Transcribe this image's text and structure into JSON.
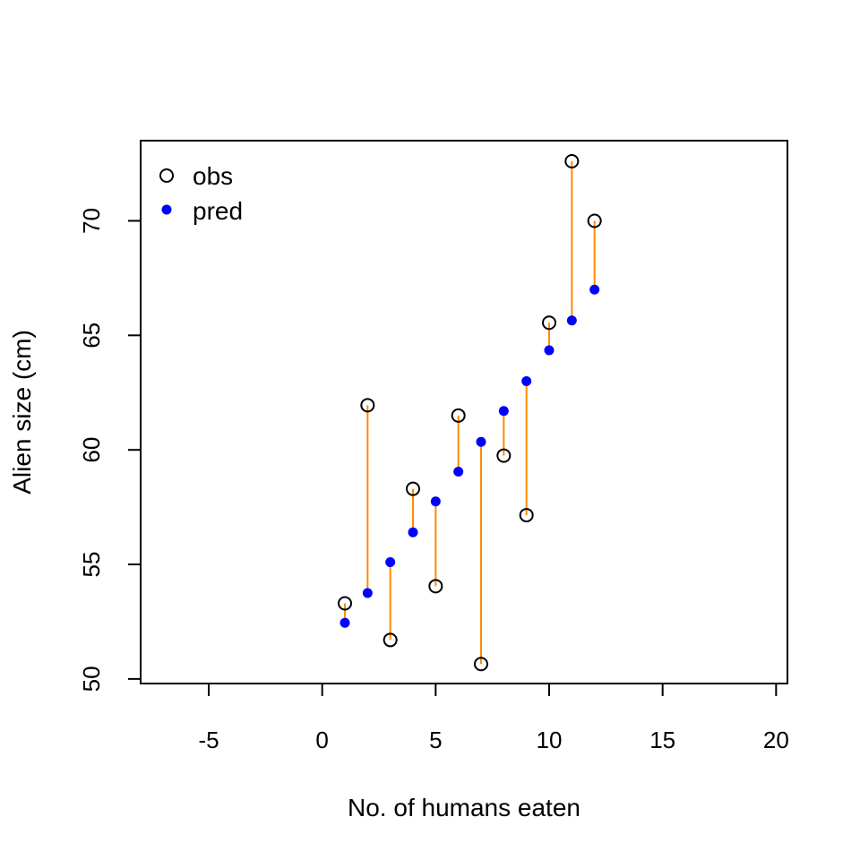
{
  "chart_data": {
    "type": "scatter",
    "title": "",
    "xlabel": "No. of humans eaten",
    "ylabel": "Alien size (cm)",
    "xlim": [
      -8,
      20.5
    ],
    "ylim": [
      49.8,
      73.5
    ],
    "x_ticks": [
      -5,
      0,
      5,
      10,
      15,
      20
    ],
    "y_ticks": [
      50,
      55,
      60,
      65,
      70
    ],
    "grid": false,
    "legend_position": "top-left",
    "series": [
      {
        "name": "obs",
        "marker": "open-circle",
        "color": "#000000",
        "x": [
          1,
          2,
          3,
          4,
          5,
          6,
          7,
          8,
          9,
          10,
          11,
          12
        ],
        "y": [
          53.3,
          61.95,
          51.7,
          58.3,
          54.05,
          61.5,
          50.65,
          59.75,
          57.15,
          65.55,
          72.6,
          70.0
        ]
      },
      {
        "name": "pred",
        "marker": "filled-circle",
        "color": "#0000ff",
        "x": [
          1,
          2,
          3,
          4,
          5,
          6,
          7,
          8,
          9,
          10,
          11,
          12
        ],
        "y": [
          52.45,
          53.75,
          55.1,
          56.4,
          57.75,
          59.05,
          60.35,
          61.7,
          63.0,
          64.35,
          65.65,
          67.0
        ]
      }
    ],
    "residual_line_color": "#ff8c00"
  }
}
